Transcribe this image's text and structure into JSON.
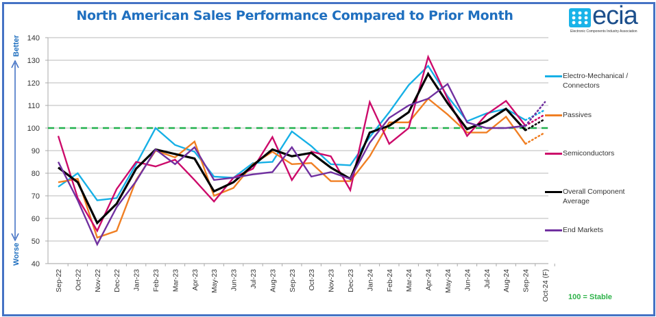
{
  "header": {
    "title": "North American Sales Performance Compared to Prior Month",
    "logo_text": "ecia",
    "logo_subtitle": "Electronic Components Industry Association"
  },
  "annotations": {
    "better": "Better",
    "worse": "Worse",
    "stable_note": "100 = Stable"
  },
  "colors": {
    "electro": "#16b0e6",
    "passives": "#f07f23",
    "semis": "#cc0a6a",
    "overall": "#000000",
    "end": "#7030a0",
    "stable_line": "#1fb04b",
    "axis_label": "#1f6fbf",
    "frame": "#4472c4"
  },
  "chart_data": {
    "type": "line",
    "title": "North American Sales Performance Compared to Prior Month",
    "xlabel": "",
    "ylabel": "",
    "ylim": [
      40,
      140
    ],
    "yticks": [
      40,
      50,
      60,
      70,
      80,
      90,
      100,
      110,
      120,
      130,
      140
    ],
    "grid": true,
    "legend_position": "right",
    "reference_line": {
      "value": 100,
      "label": "100 = Stable",
      "style": "dashed"
    },
    "categories": [
      "Sep-22",
      "Oct-22",
      "Nov-22",
      "Dec-22",
      "Jan-23",
      "Feb-23",
      "Mar-23",
      "Apr-23",
      "May-23",
      "Jun-23",
      "Jul-23",
      "Aug-23",
      "Sep-23",
      "Oct-23",
      "Nov-23",
      "Dec-23",
      "Jan-24",
      "Feb-24",
      "Mar-24",
      "Apr-24",
      "May-24",
      "Jun-24",
      "Jul-24",
      "Aug-24",
      "Sep-24",
      "Oct-24 (F)"
    ],
    "forecast_from_index": 24,
    "series": [
      {
        "name": "Electro-Mechanical / Connectors",
        "color_key": "electro",
        "values": [
          74,
          80,
          68,
          69,
          84,
          100,
          92.5,
          89.5,
          78.5,
          78,
          84.5,
          85,
          98.5,
          92,
          84,
          83.5,
          96,
          107,
          119,
          127.5,
          114,
          103,
          106.5,
          108.5,
          103.5,
          108
        ]
      },
      {
        "name": "Passives",
        "color_key": "passives",
        "values": [
          76,
          77.5,
          51.5,
          54.5,
          77,
          90,
          87,
          94,
          70,
          73.5,
          84,
          89.5,
          84,
          84.5,
          76.5,
          76.5,
          87.5,
          102.5,
          102.5,
          113,
          106,
          98,
          98,
          105,
          93,
          98
        ]
      },
      {
        "name": "Semiconductors",
        "color_key": "semis",
        "values": [
          96.5,
          69,
          54.5,
          73,
          85,
          83,
          86,
          77,
          67.5,
          78,
          82,
          96,
          77,
          89.5,
          87.5,
          72.5,
          111.5,
          93,
          100,
          131.5,
          113,
          96.5,
          106,
          112,
          101,
          106
        ]
      },
      {
        "name": "Overall Component Average",
        "color_key": "overall",
        "values": [
          82.5,
          76,
          58,
          66.5,
          82,
          90.5,
          88.5,
          86.5,
          72,
          76,
          83.5,
          90.5,
          87.5,
          89,
          82.5,
          77.5,
          98,
          101,
          107,
          124,
          111,
          99.5,
          103,
          108.5,
          99,
          104
        ]
      },
      {
        "name": "End Markets",
        "color_key": "end",
        "values": [
          85,
          68,
          48.5,
          65,
          76.5,
          90.5,
          84,
          91.5,
          77,
          78,
          79.5,
          80.5,
          91.5,
          78.5,
          80.5,
          77.5,
          93.5,
          104.5,
          110,
          113,
          119.5,
          102.5,
          100,
          100,
          101,
          111.5
        ]
      }
    ]
  }
}
